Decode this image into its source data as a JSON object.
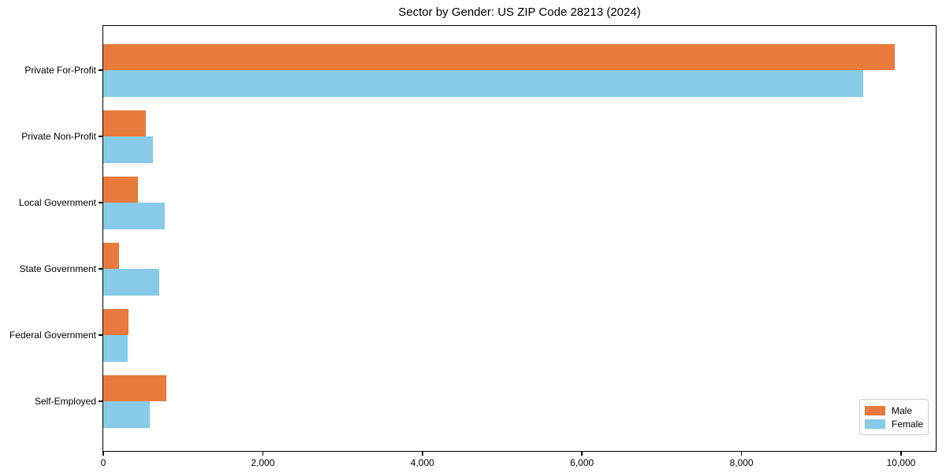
{
  "title": "Sector by Gender: US ZIP Code 28213 (2024)",
  "chart_data": {
    "type": "bar",
    "orientation": "horizontal",
    "title": "Sector by Gender: US ZIP Code 28213 (2024)",
    "categories": [
      "Private For-Profit",
      "Private Non-Profit",
      "Local Government",
      "State Government",
      "Federal Government",
      "Self-Employed"
    ],
    "series": [
      {
        "name": "Male",
        "color": "#E87A3C",
        "values": [
          9920,
          530,
          430,
          200,
          320,
          790
        ]
      },
      {
        "name": "Female",
        "color": "#87CBE8",
        "values": [
          9530,
          620,
          770,
          700,
          310,
          580
        ]
      }
    ],
    "xlabel": "",
    "ylabel": "",
    "xlim": [
      0,
      10435
    ],
    "x_ticks": [
      0,
      2000,
      4000,
      6000,
      8000,
      10000
    ],
    "x_tick_labels": [
      "0",
      "2,000",
      "4,000",
      "6,000",
      "8,000",
      "10,000"
    ],
    "legend_position": "lower right",
    "grid": false,
    "frame_color": "#000000",
    "background_color": "#ffffff"
  }
}
